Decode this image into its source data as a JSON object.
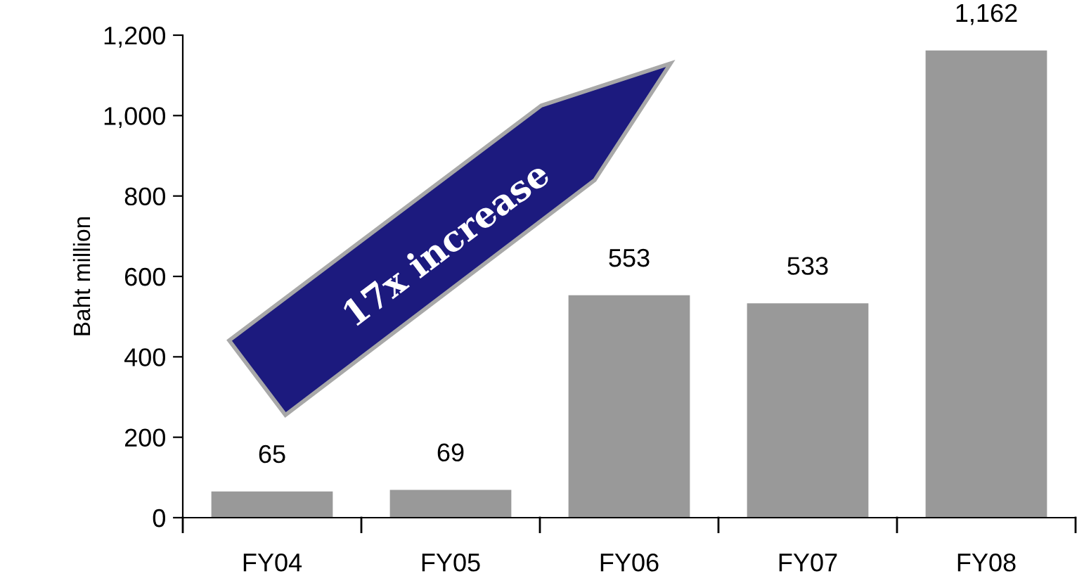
{
  "chart_data": {
    "type": "bar",
    "categories": [
      "FY04",
      "FY05",
      "FY06",
      "FY07",
      "FY08"
    ],
    "values": [
      65,
      69,
      553,
      533,
      1162
    ],
    "value_labels": [
      "65",
      "69",
      "553",
      "533",
      "1,162"
    ],
    "color": "#999999",
    "ylabel": "Baht million",
    "ylim": [
      0,
      1200
    ],
    "yticks": [
      0,
      200,
      400,
      600,
      800,
      {
        "value": 1000,
        "label": "1,000"
      },
      {
        "value": 1200,
        "label": "1,200"
      }
    ],
    "annotations": [
      "17x increase"
    ],
    "grid": false,
    "legend": false
  }
}
